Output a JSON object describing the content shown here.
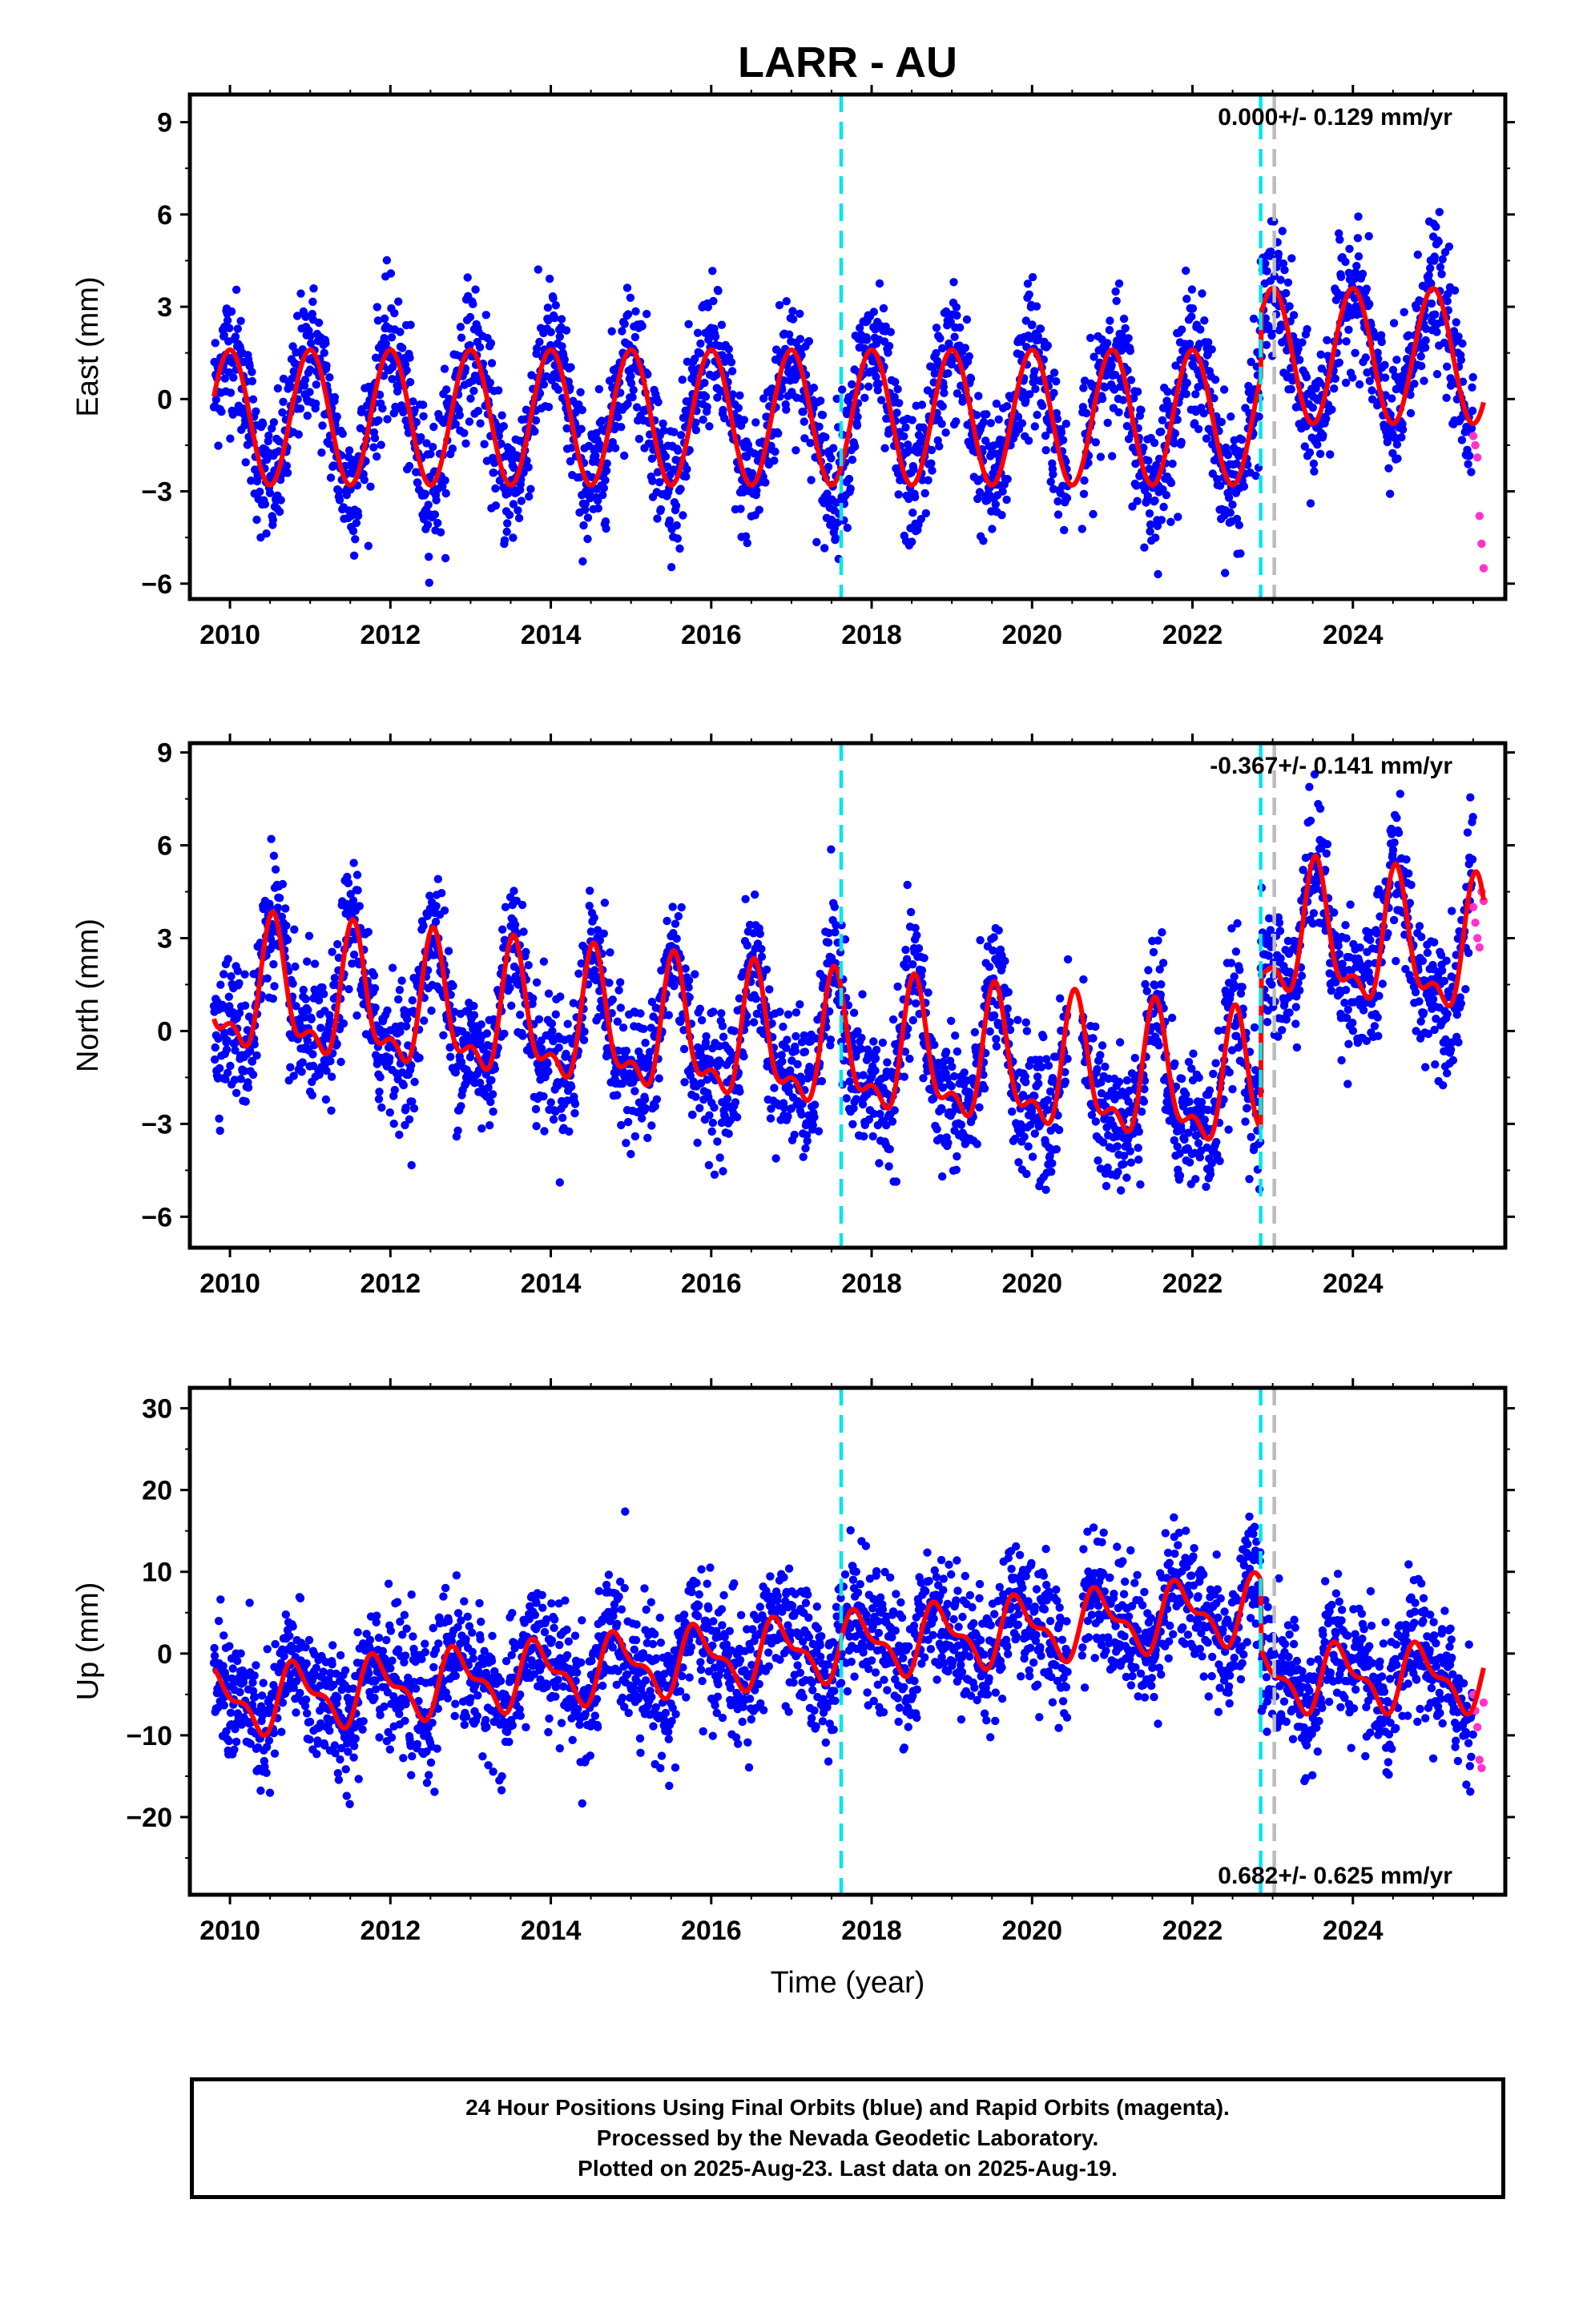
{
  "title": "LARR - AU",
  "x_axis_label": "Time (year)",
  "colors": {
    "final_orbits": "#0000ff",
    "rapid_orbits": "#ff33cc",
    "fit": "#ff0000",
    "cyan_marker": "#00e5ee",
    "gray_marker": "#bbbbbb"
  },
  "footer": {
    "line1": "24 Hour Positions Using Final Orbits (blue) and Rapid Orbits (magenta).",
    "line2": "Processed by the Nevada Geodetic Laboratory.",
    "line3": "Plotted on 2025-Aug-23. Last data on 2025-Aug-19."
  },
  "chart_data": [
    {
      "type": "scatter",
      "component": "east",
      "ylabel": "East (mm)",
      "rate_label": "0.000+/- 0.129 mm/yr",
      "rate_position": "top-right",
      "xlim": [
        2009.5,
        2025.9
      ],
      "ylim": [
        -6.5,
        9.9
      ],
      "x_ticks": [
        2010,
        2012,
        2014,
        2016,
        2018,
        2020,
        2022,
        2024
      ],
      "y_ticks": [
        -6,
        -3,
        0,
        3,
        6,
        9
      ],
      "y_tick_labels": [
        "−6",
        "−3",
        "0",
        "3",
        "6",
        "9"
      ],
      "vertical_markers": [
        {
          "x": 2017.62,
          "color": "cyan"
        },
        {
          "x": 2022.85,
          "color": "cyan"
        },
        {
          "x": 2023.02,
          "color": "gray"
        }
      ],
      "series": [
        {
          "marker": "blue dots",
          "x_range": [
            2009.8,
            2025.5
          ],
          "annual_amplitude": 2.2,
          "std": 1.1,
          "offset_after_2022.85": 2.0
        },
        {
          "marker": "magenta dots",
          "x_range": [
            2025.5,
            2025.63
          ],
          "values": [
            -1.2,
            -1.5,
            -1.9,
            -3.8,
            -4.7,
            -5.5
          ]
        },
        {
          "marker": "red seasonal fit",
          "x_range": [
            2009.8,
            2025.63
          ]
        }
      ]
    },
    {
      "type": "scatter",
      "component": "north",
      "ylabel": "North (mm)",
      "rate_label": "-0.367+/- 0.141 mm/yr",
      "rate_position": "top-right",
      "xlim": [
        2009.5,
        2025.9
      ],
      "ylim": [
        -7.0,
        9.3
      ],
      "x_ticks": [
        2010,
        2012,
        2014,
        2016,
        2018,
        2020,
        2022,
        2024
      ],
      "y_ticks": [
        -6,
        -3,
        0,
        3,
        6,
        9
      ],
      "y_tick_labels": [
        "−6",
        "−3",
        "0",
        "3",
        "6",
        "9"
      ],
      "vertical_markers": [
        {
          "x": 2017.62,
          "color": "cyan"
        },
        {
          "x": 2022.85,
          "color": "cyan"
        },
        {
          "x": 2023.02,
          "color": "gray"
        }
      ],
      "series": [
        {
          "marker": "blue dots",
          "x_range": [
            2009.8,
            2025.5
          ],
          "annual_amplitude": 1.9,
          "std": 1.1,
          "offset_after_2022.85": 5.5
        },
        {
          "marker": "magenta dots",
          "x_range": [
            2025.5,
            2025.63
          ],
          "values": [
            4.0,
            3.5,
            3.0,
            2.7,
            4.5,
            4.2
          ]
        },
        {
          "marker": "red seasonal fit",
          "x_range": [
            2009.8,
            2025.63
          ]
        }
      ]
    },
    {
      "type": "scatter",
      "component": "up",
      "ylabel": "Up (mm)",
      "rate_label": "0.682+/- 0.625 mm/yr",
      "rate_position": "bottom-right",
      "xlim": [
        2009.5,
        2025.9
      ],
      "ylim": [
        -29.5,
        32.5
      ],
      "x_ticks": [
        2010,
        2012,
        2014,
        2016,
        2018,
        2020,
        2022,
        2024
      ],
      "y_ticks": [
        -20,
        -10,
        0,
        10,
        20,
        30
      ],
      "y_tick_labels": [
        "−20",
        "−10",
        "0",
        "10",
        "20",
        "30"
      ],
      "vertical_markers": [
        {
          "x": 2017.62,
          "color": "cyan"
        },
        {
          "x": 2022.85,
          "color": "cyan"
        },
        {
          "x": 2023.02,
          "color": "gray"
        }
      ],
      "series": [
        {
          "marker": "blue dots",
          "x_range": [
            2009.8,
            2025.5
          ],
          "annual_amplitude": 3.5,
          "std": 4.0,
          "offset_after_2022.85": -9.0
        },
        {
          "marker": "magenta dots",
          "x_range": [
            2025.5,
            2025.63
          ],
          "values": [
            -5.0,
            -7.0,
            -9.0,
            -13.0,
            -14.0,
            -6.0
          ]
        },
        {
          "marker": "red seasonal fit",
          "x_range": [
            2009.8,
            2025.63
          ]
        }
      ]
    }
  ]
}
